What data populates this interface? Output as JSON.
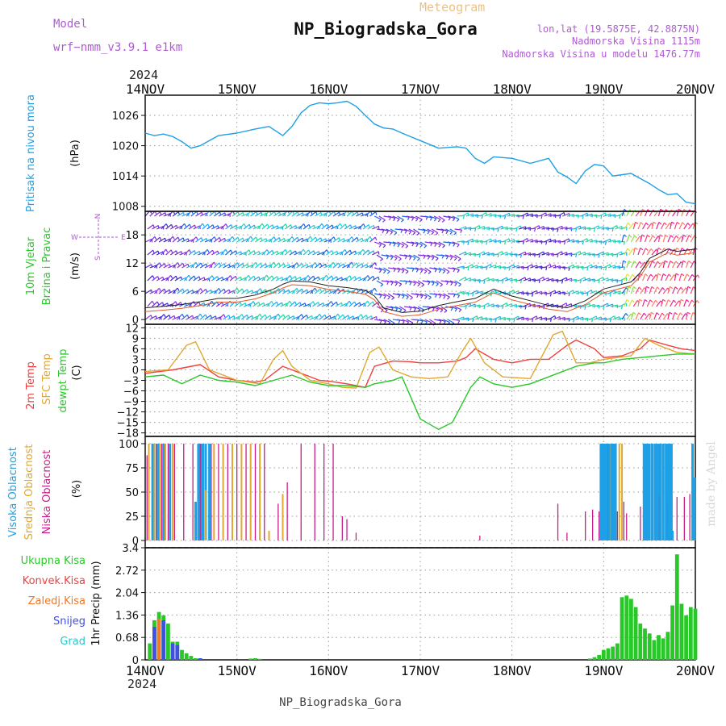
{
  "header": {
    "model_label": "Model",
    "model_name": "wrf−nmm_v3.9.1  e1km",
    "meteogram_label": "Meteogram",
    "station_title": "NP_Biogradska_Gora",
    "lonlat": "lon,lat (19.5875E, 42.8875N)",
    "altitude": "Nadmorska Visina 1115m",
    "model_altitude": "Nadmorska Visina u modelu 1476.77m",
    "year_top": "2024",
    "year_bottom": "2024",
    "footer_title": "NP_Biogradska_Gora",
    "credit": "made by Angel"
  },
  "colors": {
    "title_purple": "#b05ad6",
    "meteogram_orange": "#f0c080",
    "pressure": "#1ea0e6",
    "t2m": "#f04040",
    "sfc": "#e0a830",
    "dewpt": "#28c828",
    "high_cloud": "#1ea0e6",
    "mid_cloud": "#e0a830",
    "low_cloud": "#c81e8c",
    "precip_total": "#28c828",
    "precip_conv": "#f04040",
    "precip_frz": "#f07828",
    "precip_snow": "#4050e0",
    "precip_grad": "#28c8c8",
    "grid": "#9a9a9a"
  },
  "chart_data": [
    {
      "type": "line",
      "panel": "pressure",
      "ylabel_colored": "Pritisak na nivou mora",
      "ylabel": "(hPa)",
      "x_tick_labels": [
        "14NOV",
        "15NOV",
        "16NOV",
        "17NOV",
        "18NOV",
        "19NOV",
        "20NOV"
      ],
      "yticks": [
        "1008",
        "1014",
        "1020",
        "1026"
      ],
      "ylim": [
        1007,
        1030
      ],
      "grid": true,
      "series": [
        {
          "name": "Pritisak na nivou mora",
          "x_days": [
            0,
            0.1,
            0.2,
            0.3,
            0.4,
            0.5,
            0.6,
            0.7,
            0.8,
            1.0,
            1.2,
            1.35,
            1.5,
            1.6,
            1.7,
            1.8,
            1.9,
            2.0,
            2.1,
            2.2,
            2.3,
            2.4,
            2.5,
            2.6,
            2.7,
            2.8,
            3.0,
            3.2,
            3.4,
            3.5,
            3.6,
            3.7,
            3.8,
            4.0,
            4.2,
            4.4,
            4.5,
            4.6,
            4.7,
            4.8,
            4.9,
            5.0,
            5.1,
            5.3,
            5.5,
            5.6,
            5.7,
            5.8,
            5.9,
            6.0
          ],
          "values": [
            1022.5,
            1022,
            1022.3,
            1021.8,
            1020.8,
            1019.5,
            1020,
            1021,
            1022,
            1022.5,
            1023.3,
            1023.8,
            1022,
            1023.8,
            1026.5,
            1028,
            1028.5,
            1028.3,
            1028.5,
            1028.8,
            1027.8,
            1026,
            1024.3,
            1023.5,
            1023.3,
            1022.5,
            1021,
            1019.5,
            1019.8,
            1019.5,
            1017.5,
            1016.5,
            1017.8,
            1017.5,
            1016.5,
            1017.5,
            1014.8,
            1013.8,
            1012.5,
            1015,
            1016.3,
            1016,
            1014,
            1014.5,
            1012.5,
            1011.3,
            1010.3,
            1010.5,
            1008.8,
            1008.5
          ]
        }
      ]
    },
    {
      "type": "line",
      "panel": "wind",
      "ylabel_colored": "10m Vjetar",
      "ylabel_colored2": "Brzina i Pravac",
      "ylabel": "(m/s)",
      "compass": {
        "north": "N",
        "south": "S",
        "east": "E",
        "west": "W"
      },
      "yticks": [
        "0",
        "6",
        "12",
        "18"
      ],
      "ylim": [
        -1,
        23
      ],
      "grid": true,
      "series": [
        {
          "name": "Brzina",
          "x_days": [
            0,
            0.2,
            0.4,
            0.6,
            0.8,
            1.0,
            1.2,
            1.4,
            1.5,
            1.6,
            1.8,
            2.0,
            2.2,
            2.4,
            2.5,
            2.6,
            2.8,
            3.0,
            3.2,
            3.4,
            3.6,
            3.8,
            4.0,
            4.2,
            4.4,
            4.6,
            4.8,
            5.0,
            5.2,
            5.3,
            5.4,
            5.5,
            5.6,
            5.7,
            5.8,
            6.0
          ],
          "values": [
            2.5,
            2.8,
            3.2,
            3.8,
            4.5,
            4.5,
            5.2,
            6.5,
            7.5,
            8.2,
            8.0,
            7.2,
            6.8,
            6.2,
            5.0,
            2.5,
            1.5,
            1.8,
            3.0,
            3.8,
            4.5,
            6.5,
            5.0,
            4.0,
            3.0,
            2.5,
            4.0,
            6.5,
            7.5,
            8.0,
            10.0,
            13.0,
            14.0,
            15.0,
            14.5,
            15.0
          ]
        }
      ]
    },
    {
      "type": "line",
      "panel": "temperature",
      "ylabel_t2m": "2m Temp",
      "ylabel_sfc": "SFC Temp",
      "ylabel_dew": "dewpt Temp",
      "ylabel": "(C)",
      "yticks": [
        "12",
        "9",
        "6",
        "3",
        "0",
        "−3",
        "−6",
        "−9",
        "−12",
        "−15",
        "−18"
      ],
      "ylim": [
        -19,
        13
      ],
      "grid": true,
      "series": [
        {
          "name": "2m Temp",
          "x_days": [
            0,
            0.3,
            0.6,
            0.8,
            1.0,
            1.2,
            1.3,
            1.5,
            1.7,
            1.9,
            2.0,
            2.2,
            2.4,
            2.5,
            2.7,
            2.9,
            3.0,
            3.2,
            3.4,
            3.5,
            3.6,
            3.8,
            4.0,
            4.2,
            4.4,
            4.6,
            4.7,
            4.9,
            5.0,
            5.2,
            5.4,
            5.5,
            5.7,
            5.85,
            6.0
          ],
          "values": [
            -1,
            0,
            1.5,
            -2,
            -3,
            -3.5,
            -3,
            1,
            -1,
            -3,
            -3.2,
            -4,
            -5,
            1,
            2.5,
            2.3,
            2,
            2,
            2.5,
            3.5,
            6,
            3,
            2,
            3,
            3,
            7,
            8.5,
            6,
            3.5,
            4,
            6,
            8.5,
            7,
            6,
            5.5
          ]
        },
        {
          "name": "SFC Temp",
          "x_days": [
            0,
            0.25,
            0.45,
            0.55,
            0.7,
            0.9,
            1.0,
            1.25,
            1.4,
            1.5,
            1.6,
            1.8,
            2.0,
            2.15,
            2.3,
            2.45,
            2.55,
            2.7,
            2.9,
            3.1,
            3.3,
            3.45,
            3.55,
            3.7,
            3.9,
            4.2,
            4.45,
            4.55,
            4.7,
            4.85,
            5.0,
            5.3,
            5.45,
            5.6,
            5.8,
            6.0
          ],
          "values": [
            -0.5,
            0,
            7,
            8,
            0,
            -2,
            -3,
            -4,
            3,
            5.5,
            1,
            -3,
            -4,
            -5,
            -5.2,
            5,
            6.5,
            0,
            -2,
            -2.5,
            -2,
            5,
            9,
            2,
            -2,
            -2.5,
            10,
            11,
            2,
            2,
            3,
            4,
            9,
            7,
            5,
            4.5
          ]
        },
        {
          "name": "dewpt Temp",
          "x_days": [
            0,
            0.2,
            0.4,
            0.6,
            0.8,
            1.0,
            1.2,
            1.4,
            1.6,
            1.8,
            2.0,
            2.2,
            2.4,
            2.5,
            2.7,
            2.8,
            2.9,
            3.0,
            3.2,
            3.35,
            3.45,
            3.55,
            3.65,
            3.8,
            4.0,
            4.2,
            4.5,
            4.7,
            4.9,
            5.0,
            5.2,
            5.4,
            5.6,
            5.8,
            6.0
          ],
          "values": [
            -2,
            -1.5,
            -4,
            -1.5,
            -3,
            -3.5,
            -4.5,
            -3,
            -1.5,
            -3.5,
            -4.5,
            -4.5,
            -5,
            -4,
            -3,
            -2,
            -8,
            -14,
            -17,
            -15,
            -10,
            -5,
            -2,
            -4,
            -5,
            -4,
            -1,
            1,
            2,
            2,
            3,
            3.5,
            4,
            4.5,
            4.5
          ]
        }
      ]
    },
    {
      "type": "bar",
      "panel": "cloud",
      "ylabel_high": "Visoka Oblacnost",
      "ylabel_mid": "Srednja Oblacnost",
      "ylabel_low": "Niska Oblacnost",
      "ylabel": "(%)",
      "yticks": [
        "0",
        "25",
        "50",
        "75",
        "100"
      ],
      "ylim": [
        0,
        100
      ],
      "grid": true,
      "series": [
        {
          "name": "Visoka Oblacnost",
          "x_days": [
            0.08,
            0.14,
            0.2,
            0.27,
            0.55,
            0.58,
            0.61,
            0.63,
            0.66,
            0.7,
            4.98,
            5.01,
            5.04,
            5.07,
            5.1,
            5.13,
            5.45,
            5.49,
            5.53,
            5.57,
            5.61,
            5.65,
            5.69,
            5.72,
            5.75,
            5.97,
            5.99
          ],
          "values": [
            100,
            100,
            100,
            100,
            40,
            100,
            100,
            100,
            100,
            100,
            100,
            100,
            100,
            100,
            100,
            100,
            100,
            100,
            100,
            100,
            100,
            100,
            100,
            100,
            10,
            100,
            65
          ]
        },
        {
          "name": "Srednja Oblacnost",
          "x_days": [
            0.04,
            0.1,
            0.16,
            0.22,
            0.3,
            0.66,
            0.75,
            0.85,
            0.95,
            1.05,
            1.15,
            1.25,
            1.35,
            1.5,
            5.08,
            5.12,
            5.17,
            5.2
          ],
          "values": [
            100,
            100,
            100,
            100,
            100,
            52,
            100,
            100,
            100,
            100,
            100,
            100,
            10,
            48,
            100,
            100,
            100,
            100
          ]
        },
        {
          "name": "Niska Oblacnost",
          "x_days": [
            0.02,
            0.12,
            0.18,
            0.25,
            0.32,
            0.42,
            0.52,
            0.6,
            0.72,
            0.8,
            0.9,
            1.0,
            1.1,
            1.2,
            1.3,
            1.45,
            1.55,
            1.7,
            1.85,
            1.95,
            2.05,
            2.15,
            2.2,
            2.3,
            3.65,
            4.5,
            4.6,
            4.8,
            4.88,
            4.95,
            5.0,
            5.05,
            5.15,
            5.22,
            5.25,
            5.4,
            5.5,
            5.6,
            5.7,
            5.8,
            5.88,
            5.94
          ],
          "values": [
            88,
            100,
            100,
            100,
            100,
            100,
            100,
            100,
            100,
            100,
            100,
            100,
            100,
            100,
            100,
            38,
            60,
            100,
            100,
            100,
            100,
            25,
            22,
            8,
            5,
            38,
            8,
            30,
            32,
            30,
            100,
            100,
            30,
            40,
            28,
            35,
            38,
            45,
            40,
            45,
            45,
            48
          ]
        }
      ]
    },
    {
      "type": "bar",
      "panel": "precip",
      "ylabel_total": "Ukupna Kisa",
      "ylabel_conv": "Konvek.Kisa",
      "ylabel_frz": "Zaledj.Kisa",
      "ylabel_snow": "Snijeg",
      "ylabel_grad": "Grad",
      "ylabel": "1hr Precip (mm)",
      "yticks": [
        "0",
        "0.68",
        "1.36",
        "2.04",
        "2.72",
        "3.4"
      ],
      "ylim": [
        0,
        3.4
      ],
      "grid": true,
      "series": [
        {
          "name": "Ukupna Kisa",
          "x_days": [
            0.05,
            0.1,
            0.15,
            0.2,
            0.25,
            0.3,
            0.35,
            0.4,
            0.45,
            0.5,
            0.55,
            0.6,
            1.15,
            1.2,
            1.25,
            4.85,
            4.9,
            4.95,
            5.0,
            5.05,
            5.1,
            5.15,
            5.2,
            5.25,
            5.3,
            5.35,
            5.4,
            5.45,
            5.5,
            5.55,
            5.6,
            5.65,
            5.7,
            5.75,
            5.8,
            5.85,
            5.9,
            5.95,
            6.0
          ],
          "values": [
            0.5,
            1.2,
            1.45,
            1.35,
            1.1,
            0.55,
            0.55,
            0.3,
            0.2,
            0.12,
            0.05,
            0.02,
            0.04,
            0.05,
            0.03,
            0.04,
            0.08,
            0.15,
            0.3,
            0.35,
            0.4,
            0.5,
            1.9,
            1.95,
            1.85,
            1.6,
            1.1,
            0.95,
            0.8,
            0.6,
            0.75,
            0.65,
            0.85,
            1.65,
            3.2,
            1.7,
            1.35,
            1.6,
            1.55
          ]
        },
        {
          "name": "Snijeg",
          "x_days": [
            0.1,
            0.2,
            0.3,
            0.35,
            0.6
          ],
          "values": [
            1.0,
            1.2,
            0.5,
            0.45,
            0.05
          ]
        },
        {
          "name": "Zaledj.Kisa",
          "x_days": [
            0.15
          ],
          "values": [
            1.25
          ]
        }
      ]
    }
  ]
}
